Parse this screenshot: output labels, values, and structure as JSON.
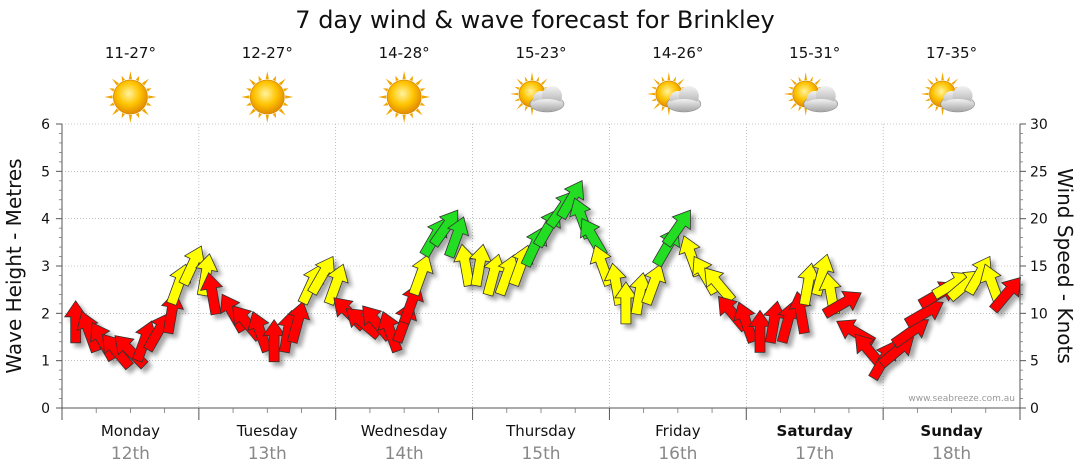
{
  "title": "7 day wind & wave forecast for Brinkley",
  "credit": "www.seabreeze.com.au",
  "colors": {
    "strong": "#ff0000",
    "moderate": "#ffff00",
    "light": "#22dd22",
    "grid": "#999999"
  },
  "days": [
    {
      "name": "Monday",
      "date": "12th",
      "temp": "11-27°",
      "icon": "sun-icon",
      "bold": false
    },
    {
      "name": "Tuesday",
      "date": "13th",
      "temp": "12-27°",
      "icon": "sun-icon",
      "bold": false
    },
    {
      "name": "Wednesday",
      "date": "14th",
      "temp": "14-28°",
      "icon": "sun-icon",
      "bold": false
    },
    {
      "name": "Thursday",
      "date": "15th",
      "temp": "15-23°",
      "icon": "sun-cloud-icon",
      "bold": false
    },
    {
      "name": "Friday",
      "date": "16th",
      "temp": "14-26°",
      "icon": "sun-cloud-icon",
      "bold": false
    },
    {
      "name": "Saturday",
      "date": "17th",
      "temp": "15-31°",
      "icon": "sun-cloud-icon",
      "bold": true
    },
    {
      "name": "Sunday",
      "date": "18th",
      "temp": "17-35°",
      "icon": "sun-cloud-icon",
      "bold": true
    }
  ],
  "chart_data": {
    "type": "line",
    "title": "7 day wind & wave forecast for Brinkley",
    "y_left": {
      "label": "Wave Height - Metres",
      "ticks": [
        "0",
        "1",
        "2",
        "3",
        "4",
        "5",
        "6"
      ],
      "range": [
        0,
        6
      ]
    },
    "y_right": {
      "label": "Wind Speed - Knots",
      "ticks": [
        "0",
        "5",
        "10",
        "15",
        "20",
        "25",
        "30"
      ],
      "range": [
        0,
        30
      ]
    },
    "x_categories": [
      "Monday 12th",
      "Tuesday 13th",
      "Wednesday 14th",
      "Thursday 15th",
      "Friday 16th",
      "Saturday 17th",
      "Sunday 18th"
    ],
    "grid": true,
    "series": [
      {
        "values": [
          {
            "t": 0.1,
            "kn": 9,
            "dir": 0,
            "c": "strong"
          },
          {
            "t": 0.2,
            "kn": 8,
            "dir": -20,
            "c": "strong"
          },
          {
            "t": 0.3,
            "kn": 7,
            "dir": -30,
            "c": "strong"
          },
          {
            "t": 0.4,
            "kn": 6,
            "dir": -40,
            "c": "strong"
          },
          {
            "t": 0.5,
            "kn": 6,
            "dir": -45,
            "c": "strong"
          },
          {
            "t": 0.6,
            "kn": 7,
            "dir": 20,
            "c": "strong"
          },
          {
            "t": 0.7,
            "kn": 8,
            "dir": 30,
            "c": "strong"
          },
          {
            "t": 0.8,
            "kn": 10,
            "dir": 10,
            "c": "strong"
          },
          {
            "t": 0.85,
            "kn": 13,
            "dir": 20,
            "c": "moderate"
          },
          {
            "t": 0.95,
            "kn": 15,
            "dir": 25,
            "c": "moderate"
          },
          {
            "t": 1.05,
            "kn": 14,
            "dir": 10,
            "c": "moderate"
          },
          {
            "t": 1.1,
            "kn": 12,
            "dir": -10,
            "c": "strong"
          },
          {
            "t": 1.25,
            "kn": 10,
            "dir": -30,
            "c": "strong"
          },
          {
            "t": 1.35,
            "kn": 9,
            "dir": -40,
            "c": "strong"
          },
          {
            "t": 1.45,
            "kn": 8,
            "dir": -20,
            "c": "strong"
          },
          {
            "t": 1.55,
            "kn": 7,
            "dir": 0,
            "c": "strong"
          },
          {
            "t": 1.65,
            "kn": 8,
            "dir": 10,
            "c": "strong"
          },
          {
            "t": 1.72,
            "kn": 9,
            "dir": 15,
            "c": "strong"
          },
          {
            "t": 1.82,
            "kn": 13,
            "dir": 25,
            "c": "moderate"
          },
          {
            "t": 1.9,
            "kn": 14,
            "dir": 30,
            "c": "moderate"
          },
          {
            "t": 2.0,
            "kn": 13,
            "dir": 20,
            "c": "moderate"
          },
          {
            "t": 2.1,
            "kn": 10,
            "dir": -45,
            "c": "strong"
          },
          {
            "t": 2.2,
            "kn": 9,
            "dir": -50,
            "c": "strong"
          },
          {
            "t": 2.3,
            "kn": 9,
            "dir": -40,
            "c": "strong"
          },
          {
            "t": 2.4,
            "kn": 8,
            "dir": -20,
            "c": "strong"
          },
          {
            "t": 2.5,
            "kn": 9,
            "dir": 20,
            "c": "strong"
          },
          {
            "t": 2.55,
            "kn": 11,
            "dir": 20,
            "c": "strong"
          },
          {
            "t": 2.62,
            "kn": 14,
            "dir": 20,
            "c": "moderate"
          },
          {
            "t": 2.72,
            "kn": 18,
            "dir": 30,
            "c": "light"
          },
          {
            "t": 2.8,
            "kn": 19,
            "dir": 35,
            "c": "light"
          },
          {
            "t": 2.88,
            "kn": 18,
            "dir": 20,
            "c": "light"
          },
          {
            "t": 2.95,
            "kn": 15,
            "dir": -10,
            "c": "moderate"
          },
          {
            "t": 3.05,
            "kn": 15,
            "dir": 10,
            "c": "moderate"
          },
          {
            "t": 3.15,
            "kn": 14,
            "dir": 15,
            "c": "moderate"
          },
          {
            "t": 3.25,
            "kn": 14,
            "dir": 20,
            "c": "moderate"
          },
          {
            "t": 3.35,
            "kn": 15,
            "dir": 20,
            "c": "moderate"
          },
          {
            "t": 3.45,
            "kn": 17,
            "dir": 25,
            "c": "light"
          },
          {
            "t": 3.55,
            "kn": 19,
            "dir": 30,
            "c": "light"
          },
          {
            "t": 3.65,
            "kn": 21,
            "dir": 35,
            "c": "light"
          },
          {
            "t": 3.72,
            "kn": 22,
            "dir": 30,
            "c": "light"
          },
          {
            "t": 3.8,
            "kn": 20,
            "dir": -20,
            "c": "light"
          },
          {
            "t": 3.88,
            "kn": 18,
            "dir": -30,
            "c": "light"
          },
          {
            "t": 3.95,
            "kn": 15,
            "dir": -20,
            "c": "moderate"
          },
          {
            "t": 4.05,
            "kn": 13,
            "dir": -10,
            "c": "moderate"
          },
          {
            "t": 4.12,
            "kn": 11,
            "dir": 0,
            "c": "moderate"
          },
          {
            "t": 4.22,
            "kn": 12,
            "dir": 10,
            "c": "moderate"
          },
          {
            "t": 4.32,
            "kn": 13,
            "dir": 20,
            "c": "moderate"
          },
          {
            "t": 4.42,
            "kn": 17,
            "dir": 30,
            "c": "light"
          },
          {
            "t": 4.5,
            "kn": 19,
            "dir": 35,
            "c": "light"
          },
          {
            "t": 4.6,
            "kn": 16,
            "dir": -20,
            "c": "moderate"
          },
          {
            "t": 4.7,
            "kn": 14,
            "dir": -30,
            "c": "moderate"
          },
          {
            "t": 4.8,
            "kn": 13,
            "dir": -40,
            "c": "moderate"
          },
          {
            "t": 4.9,
            "kn": 10,
            "dir": -40,
            "c": "strong"
          },
          {
            "t": 5.0,
            "kn": 9,
            "dir": -20,
            "c": "strong"
          },
          {
            "t": 5.1,
            "kn": 8,
            "dir": 0,
            "c": "strong"
          },
          {
            "t": 5.2,
            "kn": 9,
            "dir": 10,
            "c": "strong"
          },
          {
            "t": 5.3,
            "kn": 9,
            "dir": 15,
            "c": "strong"
          },
          {
            "t": 5.4,
            "kn": 10,
            "dir": -10,
            "c": "strong"
          },
          {
            "t": 5.45,
            "kn": 13,
            "dir": 10,
            "c": "moderate"
          },
          {
            "t": 5.55,
            "kn": 14,
            "dir": 15,
            "c": "moderate"
          },
          {
            "t": 5.62,
            "kn": 12,
            "dir": -10,
            "c": "moderate"
          },
          {
            "t": 5.7,
            "kn": 11,
            "dir": 60,
            "c": "strong"
          },
          {
            "t": 5.8,
            "kn": 8,
            "dir": -60,
            "c": "strong"
          },
          {
            "t": 5.9,
            "kn": 6,
            "dir": -40,
            "c": "strong"
          },
          {
            "t": 6.0,
            "kn": 5,
            "dir": 30,
            "c": "strong"
          },
          {
            "t": 6.1,
            "kn": 6,
            "dir": 50,
            "c": "strong"
          },
          {
            "t": 6.2,
            "kn": 8,
            "dir": 55,
            "c": "strong"
          },
          {
            "t": 6.3,
            "kn": 10,
            "dir": 60,
            "c": "strong"
          },
          {
            "t": 6.4,
            "kn": 12,
            "dir": 60,
            "c": "strong"
          },
          {
            "t": 6.5,
            "kn": 13,
            "dir": 60,
            "c": "moderate"
          },
          {
            "t": 6.6,
            "kn": 13,
            "dir": 50,
            "c": "moderate"
          },
          {
            "t": 6.7,
            "kn": 14,
            "dir": 30,
            "c": "moderate"
          },
          {
            "t": 6.8,
            "kn": 13,
            "dir": -20,
            "c": "moderate"
          },
          {
            "t": 6.9,
            "kn": 12,
            "dir": 40,
            "c": "strong"
          }
        ]
      }
    ]
  }
}
